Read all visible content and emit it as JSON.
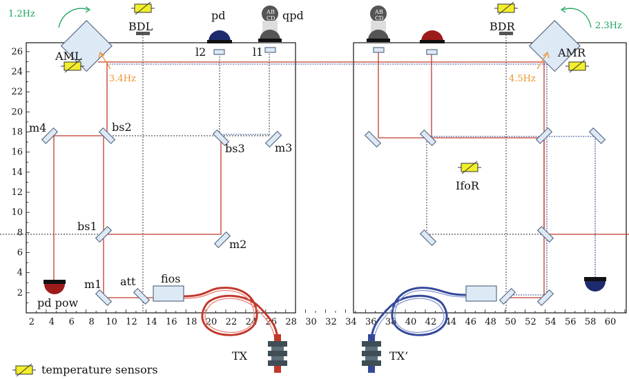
{
  "labels": {
    "aml": "AML",
    "amr": "AMR",
    "bdl": "BDL",
    "bdr": "BDR",
    "pd": "pd",
    "qpd": "qpd",
    "l1": "l1",
    "l2": "l2",
    "m1": "m1",
    "m2": "m2",
    "m3": "m3",
    "m4": "m4",
    "bs1": "bs1",
    "bs2": "bs2",
    "bs3": "bs3",
    "att": "att",
    "fios": "fios",
    "ifor": "IfoR",
    "pd_pow": "pd pow",
    "tx": "TX",
    "tx_prime": "TX’",
    "qpd_quadrants": [
      "A",
      "B",
      "C",
      "D"
    ]
  },
  "frequencies": {
    "aml_top": "1.2Hz",
    "amr_top": "2.3Hz",
    "aml_side": "3.4Hz",
    "amr_side": "4.5Hz"
  },
  "legend": {
    "temperature_sensors": "temperature sensors"
  },
  "axes": {
    "x_ticks": [
      "2",
      "4",
      "6",
      "8",
      "10",
      "12",
      "14",
      "16",
      "18",
      "20",
      "22",
      "24",
      "26",
      "28",
      "30",
      "32",
      "34",
      "36",
      "38",
      "40",
      "42",
      "44",
      "46",
      "48",
      "50",
      "52",
      "54",
      "56",
      "58",
      "60"
    ],
    "y_ticks": [
      "2",
      "4",
      "6",
      "8",
      "10",
      "12",
      "14",
      "16",
      "18",
      "20",
      "22",
      "24",
      "26"
    ]
  },
  "colors": {
    "red_beam": "#c0392b",
    "blue_beam": "#34499a",
    "sensor_yellow": "#f2ef2a",
    "green_text": "#1aa35a",
    "orange_text": "#f0922b"
  }
}
